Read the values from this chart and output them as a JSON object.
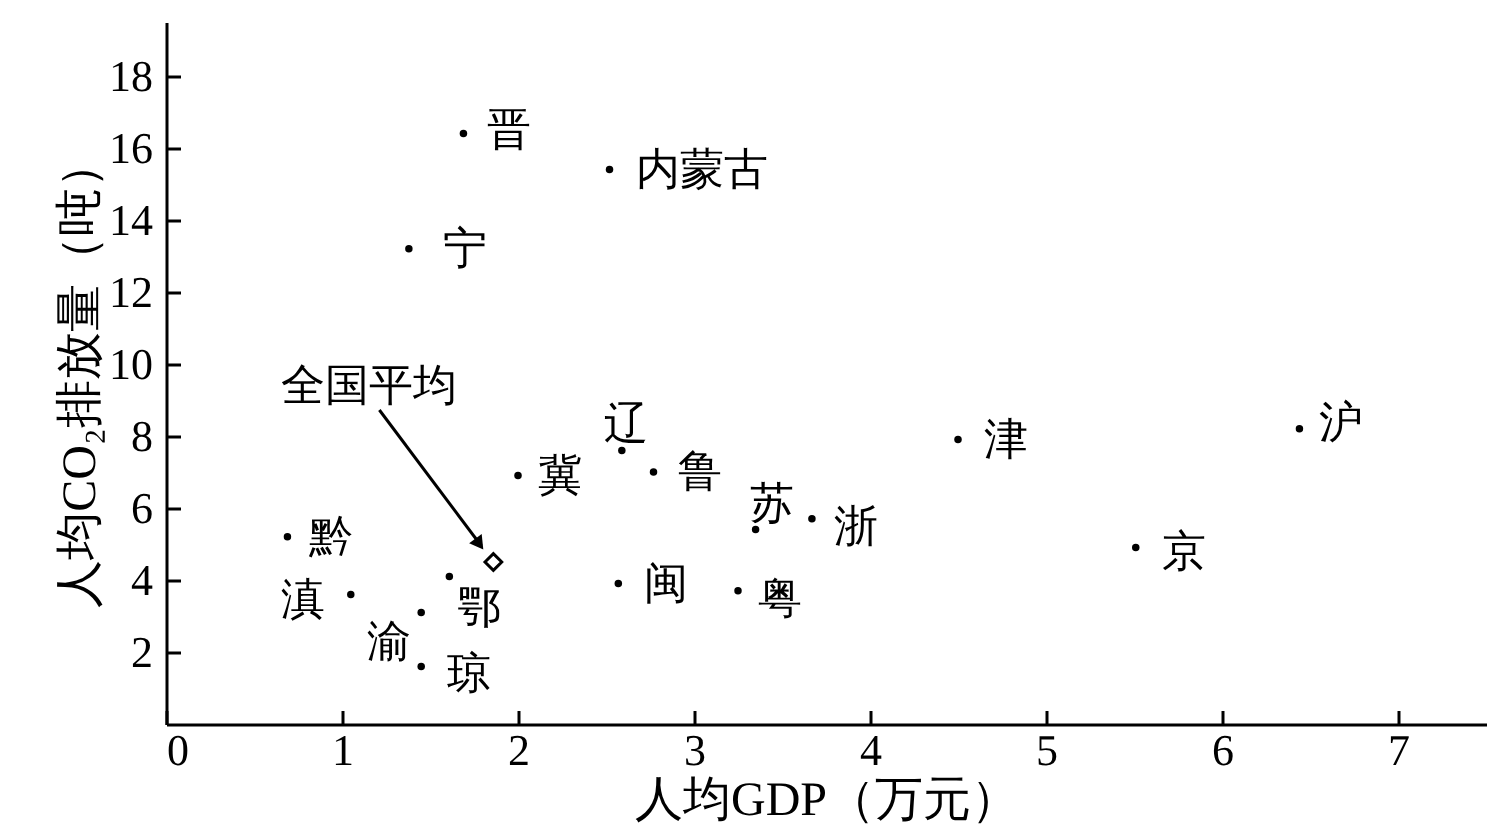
{
  "chart_data": {
    "type": "scatter",
    "xlabel": "人均GDP（万元）",
    "ylabel": "人均CO₂排放量（吨）",
    "xlim": [
      0,
      7.5
    ],
    "ylim": [
      0,
      19.5
    ],
    "xticks": [
      0,
      1,
      2,
      3,
      4,
      5,
      6,
      7
    ],
    "yticks": [
      2,
      4,
      6,
      8,
      10,
      12,
      14,
      16,
      18
    ],
    "marker": "circle",
    "series": [
      {
        "color": "#000000",
        "x": [
          1.69,
          2.52,
          1.38,
          2.0,
          2.59,
          2.77,
          3.35,
          3.67,
          2.57,
          3.25,
          4.5,
          6.44,
          5.51,
          0.69,
          1.05,
          1.45,
          1.61,
          1.45
        ],
        "values": [
          16.4,
          15.4,
          13.2,
          6.9,
          7.6,
          7.0,
          5.4,
          5.7,
          3.9,
          3.7,
          7.9,
          8.2,
          4.9,
          5.2,
          3.6,
          3.1,
          4.1,
          1.6
        ],
        "value_labels": [
          "晋",
          "内蒙古",
          "宁",
          "冀",
          "辽",
          "鲁",
          "苏",
          "浙",
          "闽",
          "粤",
          "津",
          "沪",
          "京",
          "黔",
          "滇",
          "渝",
          "鄂",
          "琼"
        ]
      },
      {
        "name": "全国平均",
        "color": "#000000",
        "marker": "diamond",
        "x": [
          1.86
        ],
        "values": [
          4.5
        ]
      }
    ]
  }
}
